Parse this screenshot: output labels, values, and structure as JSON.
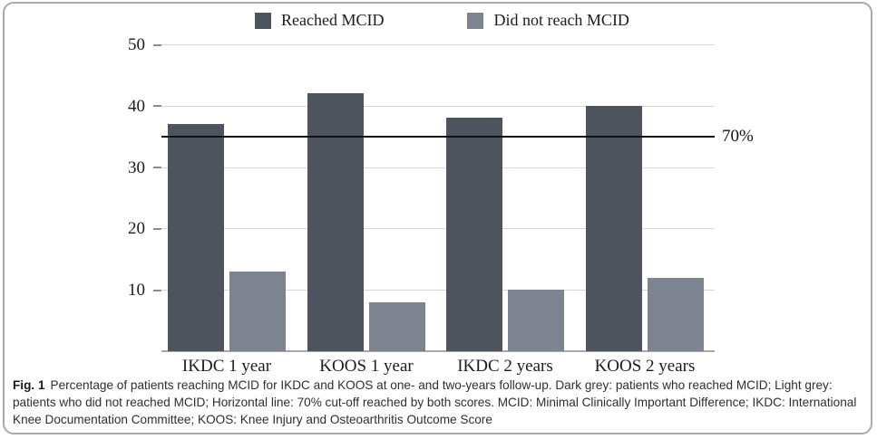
{
  "figure": {
    "caption": {
      "label": "Fig. 1",
      "text": "Percentage of patients reaching MCID for IKDC and KOOS at one- and two-years follow-up. Dark grey: patients who reached MCID; Light grey: patients who did not reached MCID; Horizontal line: 70% cut-off reached by both scores. MCID: Minimal Clinically Important Difference; IKDC: International Knee Documentation Committee; KOOS: Knee Injury and Osteoarthritis Outcome Score"
    }
  },
  "chart_data": {
    "type": "bar",
    "categories": [
      "IKDC 1 year",
      "KOOS 1 year",
      "IKDC 2 years",
      "KOOS 2 years"
    ],
    "series": [
      {
        "name": "Reached MCID",
        "color": "#4e545e",
        "values": [
          37,
          42,
          38,
          40
        ]
      },
      {
        "name": "Did not reach MCID",
        "color": "#7d8490",
        "values": [
          13,
          8,
          10,
          12
        ]
      }
    ],
    "reference_line": {
      "value": 35,
      "label": "70%"
    },
    "title": "",
    "xlabel": "",
    "ylabel": "",
    "ylim": [
      0,
      50
    ],
    "yticks": [
      10,
      20,
      30,
      40,
      50
    ],
    "grid": true,
    "legend_position": "top"
  }
}
